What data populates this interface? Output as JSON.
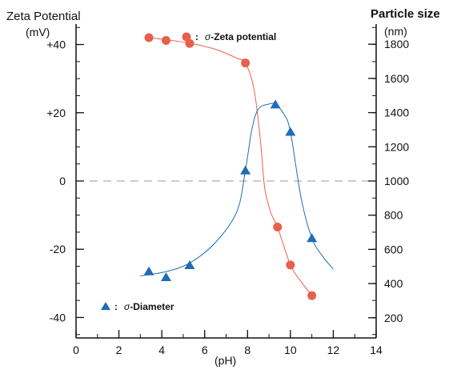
{
  "chart_data": {
    "type": "scatter",
    "left_axis": {
      "title": "Zeta Potential",
      "unit": "(mV)",
      "ticks": [
        {
          "value": 40,
          "label": "+40"
        },
        {
          "value": 20,
          "label": "+20"
        },
        {
          "value": 0,
          "label": "0"
        },
        {
          "value": -20,
          "label": "-20"
        },
        {
          "value": -40,
          "label": "-40"
        }
      ],
      "range": [
        -46,
        46
      ]
    },
    "right_axis": {
      "title": "Particle size",
      "unit": "(nm)",
      "ticks": [
        {
          "value": 1800,
          "label": "1800"
        },
        {
          "value": 1600,
          "label": "1600"
        },
        {
          "value": 1400,
          "label": "1400"
        },
        {
          "value": 1200,
          "label": "1200"
        },
        {
          "value": 1000,
          "label": "1000"
        },
        {
          "value": 800,
          "label": "800"
        },
        {
          "value": 600,
          "label": "600"
        },
        {
          "value": 400,
          "label": "400"
        },
        {
          "value": 200,
          "label": "200"
        }
      ],
      "range": [
        82,
        1918
      ]
    },
    "x_axis": {
      "label": "(pH)",
      "ticks": [
        {
          "value": 0,
          "label": "0"
        },
        {
          "value": 2,
          "label": "2"
        },
        {
          "value": 4,
          "label": "4"
        },
        {
          "value": 6,
          "label": "6"
        },
        {
          "value": 8,
          "label": "8"
        },
        {
          "value": 10,
          "label": "10"
        },
        {
          "value": 12,
          "label": "12"
        },
        {
          "value": 14,
          "label": "14"
        }
      ],
      "range": [
        0,
        14
      ]
    },
    "reference_line": {
      "axis": "left",
      "value": 0,
      "style": "dashed"
    },
    "series": [
      {
        "axis": "left",
        "marker": "circle",
        "color": "#e8604c",
        "legend_symbol": "σ",
        "legend_text": "-Zeta potential",
        "legend_position": "top-center",
        "points": [
          [
            3.4,
            42
          ],
          [
            4.2,
            41.2
          ],
          [
            5.3,
            40.3
          ],
          [
            7.9,
            34.6
          ],
          [
            9.4,
            -13.5
          ],
          [
            10.0,
            -24.6
          ],
          [
            11.0,
            -33.6
          ]
        ],
        "curve": [
          [
            3.4,
            42
          ],
          [
            4.2,
            41.4
          ],
          [
            5.3,
            40.4
          ],
          [
            6.5,
            38.6
          ],
          [
            7.5,
            36
          ],
          [
            7.9,
            34.6
          ],
          [
            8.3,
            27
          ],
          [
            8.6,
            12
          ],
          [
            8.8,
            -2
          ],
          [
            9.1,
            -9.5
          ],
          [
            9.4,
            -13.5
          ],
          [
            10.0,
            -24.6
          ],
          [
            10.5,
            -29.5
          ],
          [
            11.0,
            -33.6
          ]
        ]
      },
      {
        "axis": "right",
        "marker": "triangle",
        "color": "#1f6db5",
        "legend_symbol": "σ",
        "legend_text": "-Diameter",
        "legend_position": "bottom-left",
        "points": [
          [
            3.4,
            472
          ],
          [
            4.2,
            438
          ],
          [
            5.3,
            508
          ],
          [
            7.9,
            1062
          ],
          [
            9.3,
            1448
          ],
          [
            10.0,
            1288
          ],
          [
            11.0,
            666
          ]
        ],
        "curve": [
          [
            3.0,
            445
          ],
          [
            4.2,
            470
          ],
          [
            5.3,
            520
          ],
          [
            6.5,
            640
          ],
          [
            7.5,
            820
          ],
          [
            7.9,
            1062
          ],
          [
            8.2,
            1300
          ],
          [
            8.5,
            1420
          ],
          [
            9.0,
            1450
          ],
          [
            9.3,
            1448
          ],
          [
            9.7,
            1390
          ],
          [
            10.0,
            1288
          ],
          [
            10.5,
            900
          ],
          [
            11.0,
            666
          ],
          [
            11.5,
            560
          ],
          [
            12.0,
            485
          ]
        ]
      }
    ]
  }
}
